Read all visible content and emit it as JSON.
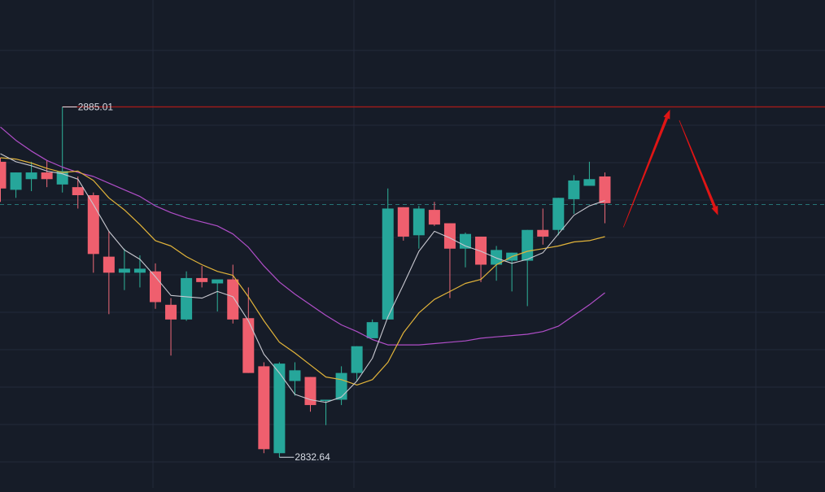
{
  "chart_data": {
    "type": "candlestick",
    "ylim": [
      2828,
      2901
    ],
    "high_label": "2885.01",
    "low_label": "2832.64",
    "resistance_level": 2885.01,
    "reference_level": 2870.4,
    "candles": [
      {
        "o": 2876.8,
        "h": 2877.4,
        "l": 2870.8,
        "c": 2872.8
      },
      {
        "o": 2872.6,
        "h": 2875.2,
        "l": 2871.4,
        "c": 2875.2
      },
      {
        "o": 2874.2,
        "h": 2876.8,
        "l": 2872.4,
        "c": 2875.2
      },
      {
        "o": 2875.2,
        "h": 2877.0,
        "l": 2873.0,
        "c": 2874.2
      },
      {
        "o": 2873.4,
        "h": 2885.0,
        "l": 2872.2,
        "c": 2875.4
      },
      {
        "o": 2873.0,
        "h": 2874.6,
        "l": 2869.8,
        "c": 2871.8
      },
      {
        "o": 2871.8,
        "h": 2872.2,
        "l": 2860.2,
        "c": 2863.0
      },
      {
        "o": 2862.6,
        "h": 2866.4,
        "l": 2854.0,
        "c": 2860.2
      },
      {
        "o": 2860.2,
        "h": 2863.8,
        "l": 2857.6,
        "c": 2860.8
      },
      {
        "o": 2860.2,
        "h": 2862.8,
        "l": 2858.0,
        "c": 2860.8
      },
      {
        "o": 2860.4,
        "h": 2861.6,
        "l": 2854.8,
        "c": 2855.8
      },
      {
        "o": 2855.4,
        "h": 2856.4,
        "l": 2847.8,
        "c": 2853.2
      },
      {
        "o": 2853.2,
        "h": 2860.4,
        "l": 2853.0,
        "c": 2859.4
      },
      {
        "o": 2859.4,
        "h": 2861.2,
        "l": 2858.0,
        "c": 2858.8
      },
      {
        "o": 2858.6,
        "h": 2858.6,
        "l": 2854.4,
        "c": 2859.2
      },
      {
        "o": 2859.2,
        "h": 2861.4,
        "l": 2852.6,
        "c": 2853.2
      },
      {
        "o": 2853.4,
        "h": 2858.0,
        "l": 2845.2,
        "c": 2845.2
      },
      {
        "o": 2846.2,
        "h": 2846.8,
        "l": 2833.2,
        "c": 2833.8
      },
      {
        "o": 2833.2,
        "h": 2846.8,
        "l": 2832.6,
        "c": 2846.6
      },
      {
        "o": 2844.0,
        "h": 2846.8,
        "l": 2841.8,
        "c": 2845.6
      },
      {
        "o": 2844.6,
        "h": 2844.6,
        "l": 2839.4,
        "c": 2840.4
      },
      {
        "o": 2841.2,
        "h": 2841.2,
        "l": 2837.4,
        "c": 2841.2
      },
      {
        "o": 2841.2,
        "h": 2846.2,
        "l": 2840.4,
        "c": 2845.2
      },
      {
        "o": 2845.2,
        "h": 2849.2,
        "l": 2844.0,
        "c": 2849.2
      },
      {
        "o": 2850.4,
        "h": 2853.2,
        "l": 2850.4,
        "c": 2852.8
      },
      {
        "o": 2853.2,
        "h": 2872.8,
        "l": 2853.2,
        "c": 2869.8
      },
      {
        "o": 2870.0,
        "h": 2870.0,
        "l": 2865.0,
        "c": 2865.6
      },
      {
        "o": 2865.8,
        "h": 2870.2,
        "l": 2863.8,
        "c": 2869.8
      },
      {
        "o": 2869.6,
        "h": 2870.8,
        "l": 2867.2,
        "c": 2867.4
      },
      {
        "o": 2867.6,
        "h": 2867.6,
        "l": 2856.4,
        "c": 2863.8
      },
      {
        "o": 2863.8,
        "h": 2866.2,
        "l": 2861.0,
        "c": 2866.0
      },
      {
        "o": 2865.6,
        "h": 2865.6,
        "l": 2858.8,
        "c": 2861.4
      },
      {
        "o": 2861.4,
        "h": 2864.2,
        "l": 2859.0,
        "c": 2863.6
      },
      {
        "o": 2862.0,
        "h": 2863.2,
        "l": 2857.4,
        "c": 2863.2
      },
      {
        "o": 2862.0,
        "h": 2866.6,
        "l": 2855.2,
        "c": 2866.6
      },
      {
        "o": 2866.6,
        "h": 2869.8,
        "l": 2864.4,
        "c": 2865.6
      },
      {
        "o": 2866.6,
        "h": 2871.4,
        "l": 2865.8,
        "c": 2871.4
      },
      {
        "o": 2871.2,
        "h": 2874.8,
        "l": 2869.0,
        "c": 2874.0
      },
      {
        "o": 2873.2,
        "h": 2876.8,
        "l": 2873.2,
        "c": 2874.2
      },
      {
        "o": 2874.6,
        "h": 2875.2,
        "l": 2867.6,
        "c": 2870.6
      }
    ],
    "ma_white": [
      2878.0,
      2876.8,
      2876.2,
      2875.4,
      2875.0,
      2874.2,
      2870.4,
      2866.4,
      2863.6,
      2862.2,
      2859.6,
      2856.8,
      2856.6,
      2856.4,
      2857.4,
      2856.6,
      2853.0,
      2848.0,
      2845.2,
      2842.0,
      2841.2,
      2840.8,
      2841.6,
      2844.0,
      2847.4,
      2853.6,
      2858.4,
      2863.4,
      2866.4,
      2865.4,
      2864.2,
      2863.4,
      2862.4,
      2861.6,
      2862.2,
      2863.2,
      2866.0,
      2868.8,
      2870.2,
      2871.0
    ],
    "ma_yellow": [
      2877.4,
      2877.2,
      2876.6,
      2875.8,
      2875.2,
      2875.4,
      2874.0,
      2871.4,
      2869.6,
      2867.4,
      2865.0,
      2864.2,
      2862.6,
      2861.4,
      2860.4,
      2859.8,
      2856.6,
      2853.0,
      2849.8,
      2848.2,
      2846.4,
      2844.6,
      2844.2,
      2843.4,
      2844.2,
      2846.8,
      2851.2,
      2854.2,
      2856.2,
      2857.4,
      2858.6,
      2859.2,
      2861.4,
      2862.6,
      2863.4,
      2863.8,
      2864.2,
      2864.8,
      2865.0,
      2865.6
    ],
    "ma_purple": [
      2882.0,
      2880.0,
      2878.4,
      2877.0,
      2876.0,
      2875.2,
      2874.6,
      2873.6,
      2872.6,
      2871.6,
      2870.2,
      2869.2,
      2868.4,
      2867.8,
      2867.2,
      2866.0,
      2864.0,
      2861.2,
      2858.8,
      2857.0,
      2855.4,
      2853.8,
      2852.4,
      2851.4,
      2850.2,
      2849.4,
      2849.4,
      2849.4,
      2849.6,
      2849.8,
      2850.0,
      2850.4,
      2850.6,
      2850.8,
      2851.0,
      2851.4,
      2852.2,
      2853.8,
      2855.4,
      2857.2
    ],
    "projection_arrows": [
      {
        "from": {
          "index": 40.2,
          "value": 2867.0
        },
        "to": {
          "index": 43.2,
          "value": 2884.6
        }
      },
      {
        "from": {
          "index": 43.8,
          "value": 2883.0
        },
        "to": {
          "index": 46.3,
          "value": 2868.8
        }
      }
    ],
    "grid": true,
    "colors": {
      "up": "#26a69a",
      "down": "#ef5f6e",
      "up_wick": "#2fb39a",
      "down_wick": "#ef6a78",
      "ma_white": "#c8c8d0",
      "ma_yellow": "#e2b43a",
      "ma_purple": "#b04ec8",
      "resistance": "#a31a1a",
      "reference": "#2a8a8a",
      "arrow": "#e01515",
      "grid": "#232a3a",
      "background": "#161c28",
      "label_text": "#d9dde6"
    }
  }
}
